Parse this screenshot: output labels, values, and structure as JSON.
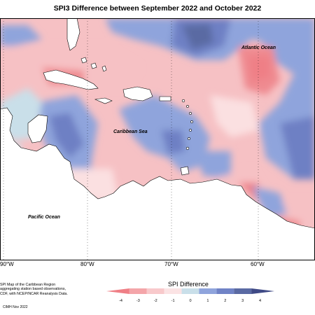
{
  "map": {
    "title": "SPI3 Difference between September 2022 and October 2022",
    "region_labels": {
      "atlantic": "Atlantic Ocean",
      "caribbean": "Caribbean Sea",
      "pacific": "Pacific Ocean"
    },
    "longitude_labels": [
      "90°W",
      "80°W",
      "70°W",
      "60°W"
    ],
    "footer_note": [
      "SPI Map of the Caribbean Region",
      "aggregating station based observations,",
      "CDF, with NCEP/NCAR Reanalysis Data."
    ],
    "footer_credit": "CIMH Nov 2022"
  },
  "legend": {
    "title": "SPI Difference",
    "ticks": [
      "-4",
      "-3",
      "-2",
      "-1",
      "0",
      "1",
      "2",
      "3",
      "4"
    ],
    "colors": [
      "#ef7f86",
      "#f4a5a9",
      "#f8c9cb",
      "#fbe3e4",
      "#c9dfe9",
      "#8fa4dc",
      "#7083c6",
      "#5a6aa3",
      "#3f4a86"
    ]
  },
  "colors": {
    "land": "#ffffff",
    "coast": "#000000",
    "dry_strong": "#ef8a90",
    "dry": "#f6c1c4",
    "dry_light": "#fbe0e1",
    "neutral": "#c9dfe9",
    "wet": "#8fa4dc",
    "wet_strong": "#6e80c4",
    "wet_dark": "#5a6aa3"
  }
}
